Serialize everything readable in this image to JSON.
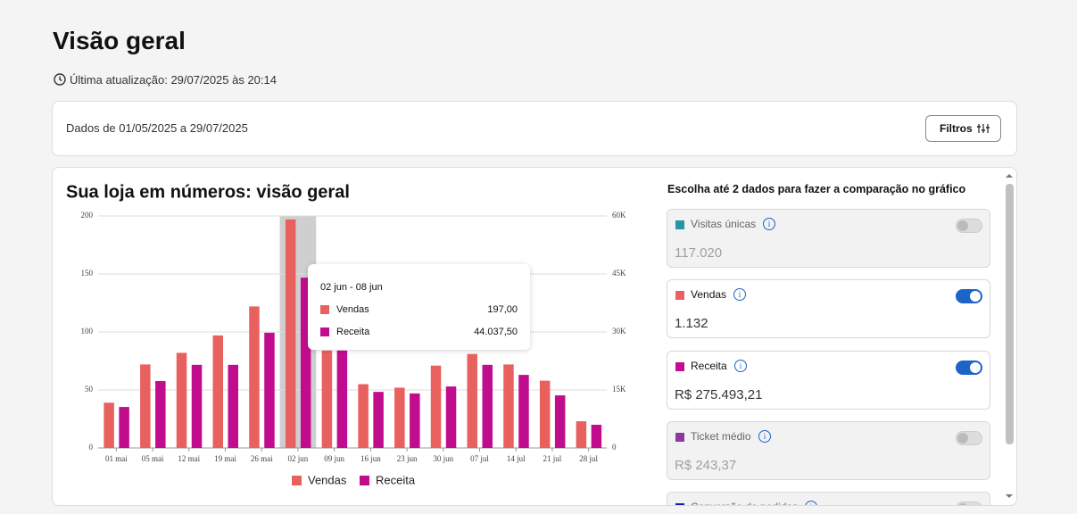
{
  "header": {
    "title": "Visão geral",
    "updated": "Última atualização: 29/07/2025 às 20:14"
  },
  "filter_bar": {
    "range": "Dados de 01/05/2025 a 29/07/2025",
    "button": "Filtros"
  },
  "chart_data": {
    "type": "bar",
    "title": "Sua loja em números: visão geral",
    "categories": [
      "01 mai",
      "05 mai",
      "12 mai",
      "19 mai",
      "26 mai",
      "02 jun",
      "09 jun",
      "16 jun",
      "23 jun",
      "30 jun",
      "07 jul",
      "14 jul",
      "21 jul",
      "28 jul"
    ],
    "series": [
      {
        "name": "Vendas",
        "color": "#e8615f",
        "values": [
          39,
          72,
          82,
          97,
          122,
          197,
          84,
          55,
          52,
          71,
          81,
          72,
          58,
          23
        ],
        "value_labels": [
          null,
          null,
          null,
          null,
          null,
          "197,00",
          null,
          null,
          null,
          null,
          null,
          null,
          null,
          null
        ]
      },
      {
        "name": "Receita",
        "color": "#c20c8e",
        "axis": "y2",
        "values": [
          10600,
          17300,
          21500,
          21500,
          29800,
          44037.5,
          25200,
          14500,
          14100,
          15900,
          21500,
          18900,
          13600,
          6000
        ],
        "value_labels": [
          null,
          null,
          null,
          null,
          null,
          "44.037,50",
          null,
          null,
          null,
          null,
          null,
          null,
          null,
          null
        ]
      }
    ],
    "ylim": [
      0,
      200
    ],
    "yticks": [
      0,
      50,
      100,
      150,
      200
    ],
    "y2lim": [
      0,
      60000
    ],
    "y2ticks": [
      0,
      {
        "value": 15000,
        "label": "15K"
      },
      {
        "value": 30000,
        "label": "30K"
      },
      {
        "value": 45000,
        "label": "45K"
      },
      {
        "value": 60000,
        "label": "60K"
      }
    ],
    "grid": true,
    "tooltip": {
      "title": "02 jun - 08 jun"
    }
  },
  "panel": {
    "title": "Escolha até 2 dados para fazer a comparação no gráfico",
    "metrics": [
      {
        "label": "Visitas únicas",
        "value": "117.020",
        "color": "#2596a8",
        "enabled": false
      },
      {
        "label": "Vendas",
        "value": "1.132",
        "color": "#e8615f",
        "enabled": true
      },
      {
        "label": "Receita",
        "value": "R$ 275.493,21",
        "color": "#c20c8e",
        "enabled": true
      },
      {
        "label": "Ticket médio",
        "value": "R$ 243,37",
        "color": "#8b3a9b",
        "enabled": false
      },
      {
        "label": "Conversão de pedidos",
        "color": "#1a1ab8",
        "enabled": false
      }
    ]
  }
}
